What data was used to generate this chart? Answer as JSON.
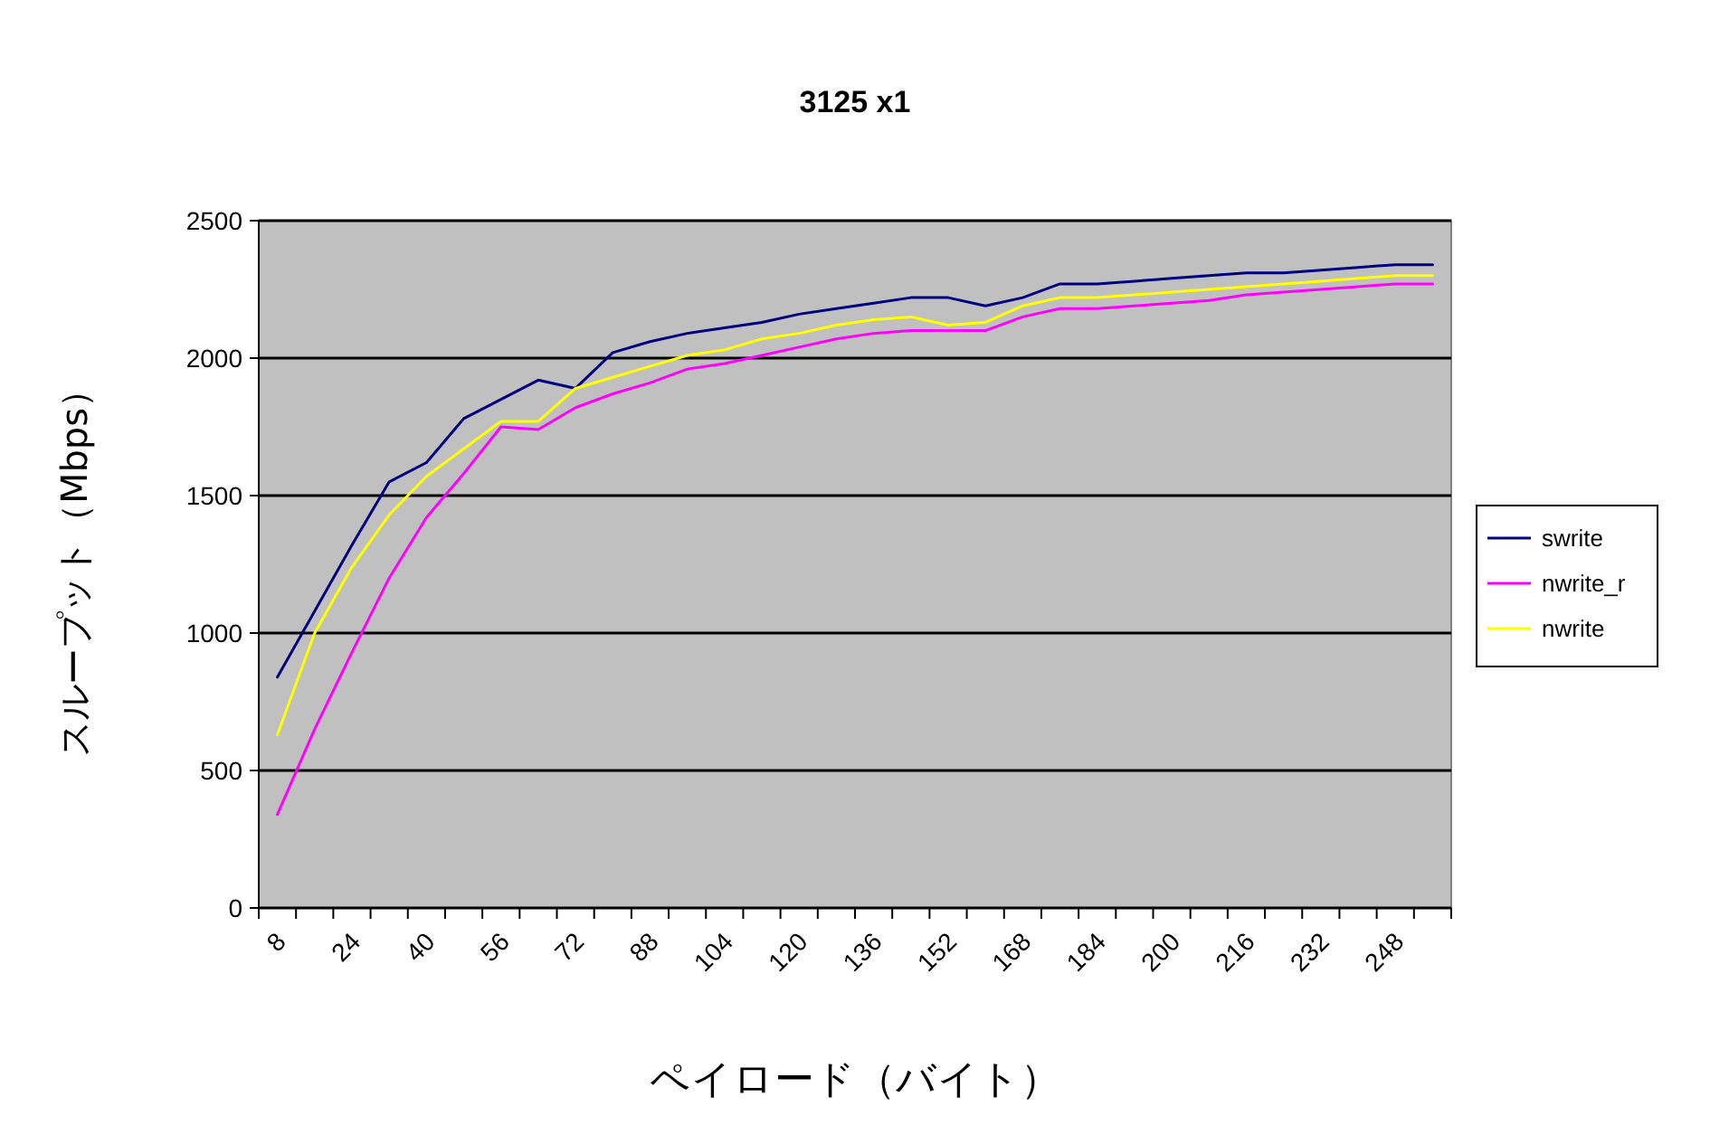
{
  "chart_data": {
    "type": "line",
    "title": "3125 x1",
    "xlabel": "ペイロード（バイト）",
    "ylabel": "スループット（Mbps）",
    "categories": [
      "8",
      null,
      "24",
      null,
      "40",
      null,
      "56",
      null,
      "72",
      null,
      "88",
      null,
      "104",
      null,
      "120",
      null,
      "136",
      null,
      "152",
      null,
      "168",
      null,
      "184",
      null,
      "200",
      null,
      "216",
      null,
      "232",
      null,
      "248",
      null
    ],
    "series": [
      {
        "name": "swrite",
        "color": "#000080",
        "values": [
          840,
          1080,
          1320,
          1550,
          1620,
          1780,
          1850,
          1920,
          1890,
          2020,
          2060,
          2090,
          2110,
          2130,
          2160,
          2180,
          2200,
          2220,
          2220,
          2190,
          2220,
          2270,
          2270,
          2280,
          2290,
          2300,
          2310,
          2310,
          2320,
          2330,
          2340,
          2340
        ]
      },
      {
        "name": "nwrite_r",
        "color": "#ff00ff",
        "values": [
          340,
          650,
          930,
          1200,
          1420,
          1580,
          1750,
          1740,
          1820,
          1870,
          1910,
          1960,
          1980,
          2010,
          2040,
          2070,
          2090,
          2100,
          2100,
          2100,
          2150,
          2180,
          2180,
          2190,
          2200,
          2210,
          2230,
          2240,
          2250,
          2260,
          2270,
          2270
        ]
      },
      {
        "name": "nwrite",
        "color": "#ffff00",
        "values": [
          630,
          1000,
          1240,
          1430,
          1570,
          1670,
          1770,
          1770,
          1890,
          1930,
          1970,
          2010,
          2030,
          2070,
          2090,
          2120,
          2140,
          2150,
          2120,
          2130,
          2190,
          2220,
          2220,
          2230,
          2240,
          2250,
          2260,
          2270,
          2280,
          2290,
          2300,
          2300
        ]
      }
    ],
    "ylim": [
      0,
      2500
    ],
    "yticks": [
      0,
      500,
      1000,
      1500,
      2000,
      2500
    ],
    "grid": "y",
    "legend": "right",
    "marker": "none",
    "line_style": "solid"
  }
}
